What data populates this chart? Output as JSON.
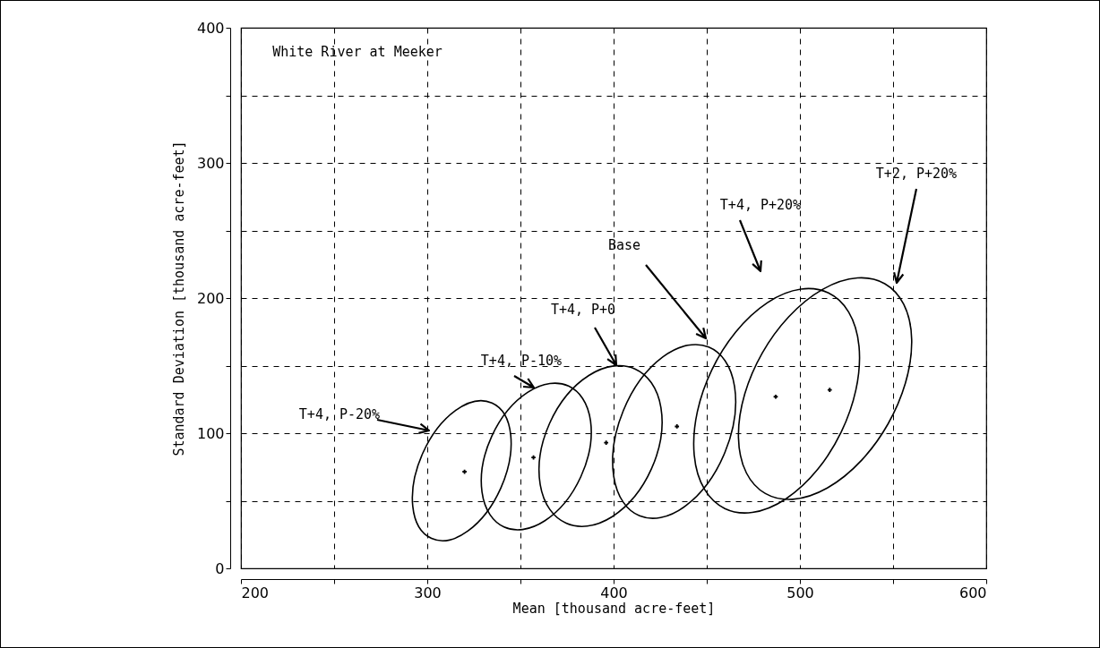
{
  "chart_data": {
    "type": "scatter",
    "xlabel": "Mean [thousand acre-feet]",
    "ylabel": "Standard Deviation [thousand acre-feet]",
    "xlim": [
      200,
      600
    ],
    "ylim": [
      0,
      400
    ],
    "xticks": [
      200,
      {
        "value": 250,
        "label": null
      },
      300,
      {
        "value": 350,
        "label": null
      },
      400,
      {
        "value": 450,
        "label": null
      },
      500,
      {
        "value": 550,
        "label": null
      },
      600
    ],
    "yticks": [
      0,
      {
        "value": 50,
        "label": null
      },
      100,
      {
        "value": 150,
        "label": null
      },
      200,
      {
        "value": 250,
        "label": null
      },
      300,
      {
        "value": 350,
        "label": null
      },
      400
    ],
    "grid": true,
    "series": [
      {
        "type": "scatter",
        "marker": "cross",
        "color": "#000000",
        "x": [
          320,
          357,
          396,
          434,
          487,
          516
        ],
        "values": [
          71.5,
          82,
          93,
          105,
          127,
          132
        ]
      }
    ],
    "annotations": [
      "White River at Meeker",
      "T+4, P-20%",
      "T+4, P-10%",
      "T+4, P+0",
      "Base",
      "T+4, P+20%",
      "T+2, P+20%"
    ]
  }
}
